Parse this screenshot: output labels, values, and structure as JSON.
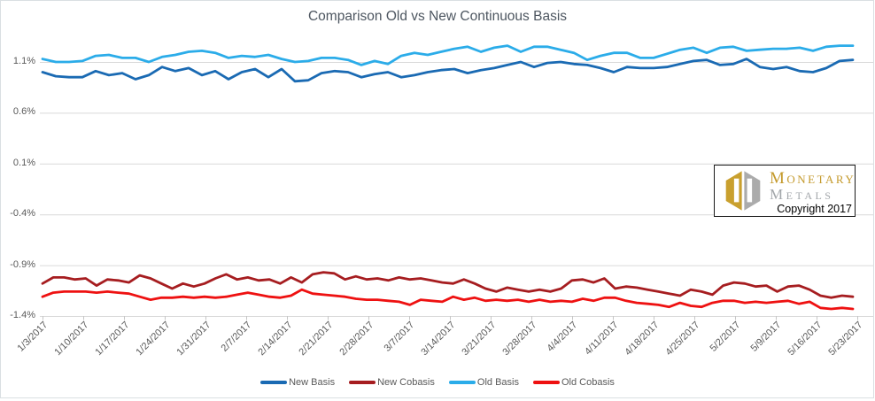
{
  "chart_data": {
    "type": "line",
    "title": "Comparison Old vs New Continuous Basis",
    "grid": "horizontal",
    "legend_position": "bottom",
    "ylim": [
      -1.4,
      1.33
    ],
    "y_ticks": [
      1.1,
      0.6,
      0.1,
      -0.4,
      -0.9,
      -1.4
    ],
    "y_tick_labels": [
      "1.1%",
      "0.6%",
      "0.1%",
      "-0.4%",
      "-0.9%",
      "-1.4%"
    ],
    "x_tick_labels": [
      "1/3/2017",
      "1/10/2017",
      "1/17/2017",
      "1/24/2017",
      "1/31/2017",
      "2/7/2017",
      "2/14/2017",
      "2/21/2017",
      "2/28/2017",
      "3/7/2017",
      "3/14/2017",
      "3/21/2017",
      "3/28/2017",
      "4/4/2017",
      "4/11/2017",
      "4/18/2017",
      "4/25/2017",
      "5/2/2017",
      "5/9/2017",
      "5/16/2017",
      "5/23/2017"
    ],
    "series": [
      {
        "name": "New Basis",
        "color": "#1A6AB3",
        "values": [
          1.0,
          0.96,
          0.95,
          0.95,
          1.01,
          0.97,
          0.99,
          0.93,
          0.97,
          1.05,
          1.01,
          1.04,
          0.97,
          1.01,
          0.93,
          1.0,
          1.03,
          0.95,
          1.03,
          0.91,
          0.92,
          0.99,
          1.01,
          1.0,
          0.95,
          0.98,
          1.0,
          0.95,
          0.97,
          1.0,
          1.02,
          1.03,
          0.99,
          1.02,
          1.04,
          1.07,
          1.1,
          1.05,
          1.09,
          1.1,
          1.08,
          1.07,
          1.04,
          1.0,
          1.05,
          1.04,
          1.04,
          1.05,
          1.08,
          1.11,
          1.12,
          1.07,
          1.08,
          1.13,
          1.05,
          1.03,
          1.05,
          1.01,
          1.0,
          1.04,
          1.11,
          1.12
        ]
      },
      {
        "name": "New Cobasis",
        "color": "#A61D20",
        "values": [
          -1.08,
          -1.02,
          -1.02,
          -1.04,
          -1.03,
          -1.1,
          -1.04,
          -1.05,
          -1.07,
          -1.0,
          -1.03,
          -1.08,
          -1.13,
          -1.08,
          -1.11,
          -1.08,
          -1.03,
          -0.99,
          -1.04,
          -1.02,
          -1.05,
          -1.04,
          -1.08,
          -1.02,
          -1.07,
          -0.99,
          -0.97,
          -0.98,
          -1.04,
          -1.01,
          -1.04,
          -1.03,
          -1.05,
          -1.02,
          -1.04,
          -1.03,
          -1.05,
          -1.07,
          -1.08,
          -1.04,
          -1.08,
          -1.13,
          -1.16,
          -1.12,
          -1.14,
          -1.16,
          -1.14,
          -1.16,
          -1.13,
          -1.05,
          -1.04,
          -1.07,
          -1.03,
          -1.13,
          -1.11,
          -1.12,
          -1.14,
          -1.16,
          -1.18,
          -1.2,
          -1.14,
          -1.16,
          -1.19,
          -1.1,
          -1.07,
          -1.08,
          -1.11,
          -1.1,
          -1.16,
          -1.11,
          -1.1,
          -1.14,
          -1.2,
          -1.22,
          -1.2,
          -1.21
        ]
      },
      {
        "name": "Old Basis",
        "color": "#2BACE9",
        "values": [
          1.13,
          1.1,
          1.1,
          1.11,
          1.16,
          1.17,
          1.14,
          1.14,
          1.1,
          1.15,
          1.17,
          1.2,
          1.21,
          1.19,
          1.14,
          1.16,
          1.15,
          1.17,
          1.13,
          1.1,
          1.11,
          1.14,
          1.14,
          1.12,
          1.07,
          1.11,
          1.08,
          1.16,
          1.19,
          1.17,
          1.2,
          1.23,
          1.25,
          1.2,
          1.24,
          1.26,
          1.2,
          1.25,
          1.25,
          1.22,
          1.19,
          1.12,
          1.16,
          1.19,
          1.19,
          1.14,
          1.14,
          1.18,
          1.22,
          1.24,
          1.19,
          1.24,
          1.25,
          1.21,
          1.22,
          1.23,
          1.23,
          1.24,
          1.21,
          1.25,
          1.26,
          1.26
        ]
      },
      {
        "name": "Old Cobasis",
        "color": "#EE1111",
        "values": [
          -1.21,
          -1.17,
          -1.16,
          -1.16,
          -1.16,
          -1.17,
          -1.16,
          -1.17,
          -1.18,
          -1.21,
          -1.24,
          -1.22,
          -1.22,
          -1.21,
          -1.22,
          -1.21,
          -1.22,
          -1.21,
          -1.19,
          -1.17,
          -1.19,
          -1.21,
          -1.22,
          -1.2,
          -1.14,
          -1.18,
          -1.19,
          -1.2,
          -1.21,
          -1.23,
          -1.24,
          -1.24,
          -1.25,
          -1.26,
          -1.29,
          -1.24,
          -1.25,
          -1.26,
          -1.21,
          -1.24,
          -1.22,
          -1.25,
          -1.24,
          -1.25,
          -1.24,
          -1.26,
          -1.24,
          -1.26,
          -1.25,
          -1.26,
          -1.23,
          -1.25,
          -1.22,
          -1.22,
          -1.25,
          -1.27,
          -1.28,
          -1.29,
          -1.31,
          -1.27,
          -1.3,
          -1.31,
          -1.27,
          -1.25,
          -1.25,
          -1.27,
          -1.26,
          -1.27,
          -1.26,
          -1.25,
          -1.28,
          -1.26,
          -1.32,
          -1.33,
          -1.32,
          -1.33
        ]
      }
    ]
  },
  "watermark": {
    "name_line1": "Monetary",
    "name_line2": "Metals",
    "copyright": "Copyright 2017"
  },
  "colors": {
    "grid": "#D9D9D9",
    "tick": "#C6C6C6",
    "frame": "#DADFE2",
    "axis_text": "#595959",
    "title_text": "#4D5660",
    "logo_gold": "#C49A2C",
    "logo_silver": "#ABABAB"
  }
}
